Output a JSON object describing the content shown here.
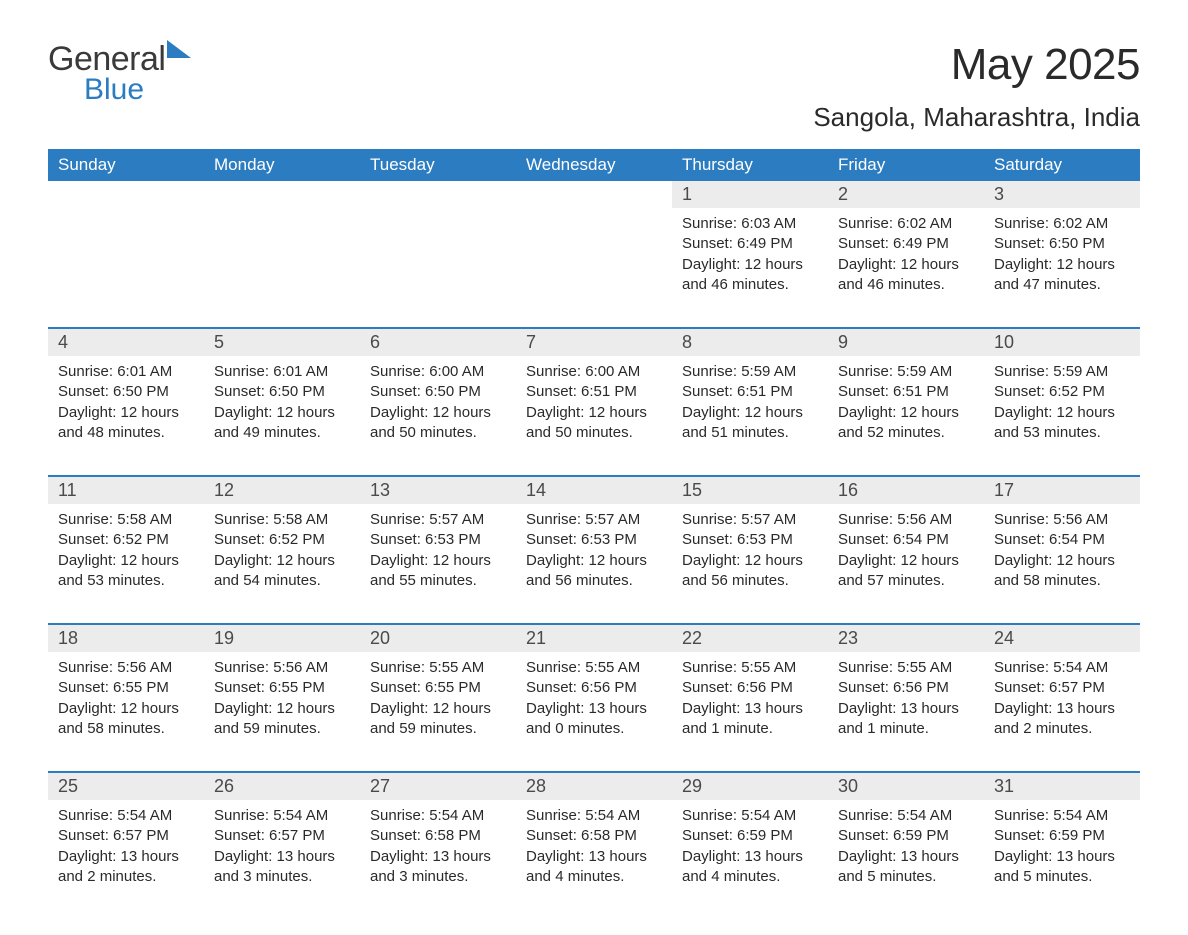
{
  "logo": {
    "general": "General",
    "blue": "Blue"
  },
  "title": "May 2025",
  "location": "Sangola, Maharashtra, India",
  "colors": {
    "header_bg": "#2b7cc0",
    "header_text": "#ffffff",
    "daynum_bg": "#ececec",
    "line": "#2b7cc0",
    "text": "#2a2a2a",
    "background": "#ffffff"
  },
  "layout": {
    "columns": 7,
    "type": "monthly-calendar",
    "title_fontsize": 44,
    "location_fontsize": 26,
    "dow_fontsize": 17,
    "daynum_fontsize": 18,
    "body_fontsize": 15
  },
  "days_of_week": [
    "Sunday",
    "Monday",
    "Tuesday",
    "Wednesday",
    "Thursday",
    "Friday",
    "Saturday"
  ],
  "weeks": [
    [
      {
        "empty": true
      },
      {
        "empty": true
      },
      {
        "empty": true
      },
      {
        "empty": true
      },
      {
        "num": "1",
        "sunrise": "Sunrise: 6:03 AM",
        "sunset": "Sunset: 6:49 PM",
        "daylight": "Daylight: 12 hours and 46 minutes."
      },
      {
        "num": "2",
        "sunrise": "Sunrise: 6:02 AM",
        "sunset": "Sunset: 6:49 PM",
        "daylight": "Daylight: 12 hours and 46 minutes."
      },
      {
        "num": "3",
        "sunrise": "Sunrise: 6:02 AM",
        "sunset": "Sunset: 6:50 PM",
        "daylight": "Daylight: 12 hours and 47 minutes."
      }
    ],
    [
      {
        "num": "4",
        "sunrise": "Sunrise: 6:01 AM",
        "sunset": "Sunset: 6:50 PM",
        "daylight": "Daylight: 12 hours and 48 minutes."
      },
      {
        "num": "5",
        "sunrise": "Sunrise: 6:01 AM",
        "sunset": "Sunset: 6:50 PM",
        "daylight": "Daylight: 12 hours and 49 minutes."
      },
      {
        "num": "6",
        "sunrise": "Sunrise: 6:00 AM",
        "sunset": "Sunset: 6:50 PM",
        "daylight": "Daylight: 12 hours and 50 minutes."
      },
      {
        "num": "7",
        "sunrise": "Sunrise: 6:00 AM",
        "sunset": "Sunset: 6:51 PM",
        "daylight": "Daylight: 12 hours and 50 minutes."
      },
      {
        "num": "8",
        "sunrise": "Sunrise: 5:59 AM",
        "sunset": "Sunset: 6:51 PM",
        "daylight": "Daylight: 12 hours and 51 minutes."
      },
      {
        "num": "9",
        "sunrise": "Sunrise: 5:59 AM",
        "sunset": "Sunset: 6:51 PM",
        "daylight": "Daylight: 12 hours and 52 minutes."
      },
      {
        "num": "10",
        "sunrise": "Sunrise: 5:59 AM",
        "sunset": "Sunset: 6:52 PM",
        "daylight": "Daylight: 12 hours and 53 minutes."
      }
    ],
    [
      {
        "num": "11",
        "sunrise": "Sunrise: 5:58 AM",
        "sunset": "Sunset: 6:52 PM",
        "daylight": "Daylight: 12 hours and 53 minutes."
      },
      {
        "num": "12",
        "sunrise": "Sunrise: 5:58 AM",
        "sunset": "Sunset: 6:52 PM",
        "daylight": "Daylight: 12 hours and 54 minutes."
      },
      {
        "num": "13",
        "sunrise": "Sunrise: 5:57 AM",
        "sunset": "Sunset: 6:53 PM",
        "daylight": "Daylight: 12 hours and 55 minutes."
      },
      {
        "num": "14",
        "sunrise": "Sunrise: 5:57 AM",
        "sunset": "Sunset: 6:53 PM",
        "daylight": "Daylight: 12 hours and 56 minutes."
      },
      {
        "num": "15",
        "sunrise": "Sunrise: 5:57 AM",
        "sunset": "Sunset: 6:53 PM",
        "daylight": "Daylight: 12 hours and 56 minutes."
      },
      {
        "num": "16",
        "sunrise": "Sunrise: 5:56 AM",
        "sunset": "Sunset: 6:54 PM",
        "daylight": "Daylight: 12 hours and 57 minutes."
      },
      {
        "num": "17",
        "sunrise": "Sunrise: 5:56 AM",
        "sunset": "Sunset: 6:54 PM",
        "daylight": "Daylight: 12 hours and 58 minutes."
      }
    ],
    [
      {
        "num": "18",
        "sunrise": "Sunrise: 5:56 AM",
        "sunset": "Sunset: 6:55 PM",
        "daylight": "Daylight: 12 hours and 58 minutes."
      },
      {
        "num": "19",
        "sunrise": "Sunrise: 5:56 AM",
        "sunset": "Sunset: 6:55 PM",
        "daylight": "Daylight: 12 hours and 59 minutes."
      },
      {
        "num": "20",
        "sunrise": "Sunrise: 5:55 AM",
        "sunset": "Sunset: 6:55 PM",
        "daylight": "Daylight: 12 hours and 59 minutes."
      },
      {
        "num": "21",
        "sunrise": "Sunrise: 5:55 AM",
        "sunset": "Sunset: 6:56 PM",
        "daylight": "Daylight: 13 hours and 0 minutes."
      },
      {
        "num": "22",
        "sunrise": "Sunrise: 5:55 AM",
        "sunset": "Sunset: 6:56 PM",
        "daylight": "Daylight: 13 hours and 1 minute."
      },
      {
        "num": "23",
        "sunrise": "Sunrise: 5:55 AM",
        "sunset": "Sunset: 6:56 PM",
        "daylight": "Daylight: 13 hours and 1 minute."
      },
      {
        "num": "24",
        "sunrise": "Sunrise: 5:54 AM",
        "sunset": "Sunset: 6:57 PM",
        "daylight": "Daylight: 13 hours and 2 minutes."
      }
    ],
    [
      {
        "num": "25",
        "sunrise": "Sunrise: 5:54 AM",
        "sunset": "Sunset: 6:57 PM",
        "daylight": "Daylight: 13 hours and 2 minutes."
      },
      {
        "num": "26",
        "sunrise": "Sunrise: 5:54 AM",
        "sunset": "Sunset: 6:57 PM",
        "daylight": "Daylight: 13 hours and 3 minutes."
      },
      {
        "num": "27",
        "sunrise": "Sunrise: 5:54 AM",
        "sunset": "Sunset: 6:58 PM",
        "daylight": "Daylight: 13 hours and 3 minutes."
      },
      {
        "num": "28",
        "sunrise": "Sunrise: 5:54 AM",
        "sunset": "Sunset: 6:58 PM",
        "daylight": "Daylight: 13 hours and 4 minutes."
      },
      {
        "num": "29",
        "sunrise": "Sunrise: 5:54 AM",
        "sunset": "Sunset: 6:59 PM",
        "daylight": "Daylight: 13 hours and 4 minutes."
      },
      {
        "num": "30",
        "sunrise": "Sunrise: 5:54 AM",
        "sunset": "Sunset: 6:59 PM",
        "daylight": "Daylight: 13 hours and 5 minutes."
      },
      {
        "num": "31",
        "sunrise": "Sunrise: 5:54 AM",
        "sunset": "Sunset: 6:59 PM",
        "daylight": "Daylight: 13 hours and 5 minutes."
      }
    ]
  ]
}
